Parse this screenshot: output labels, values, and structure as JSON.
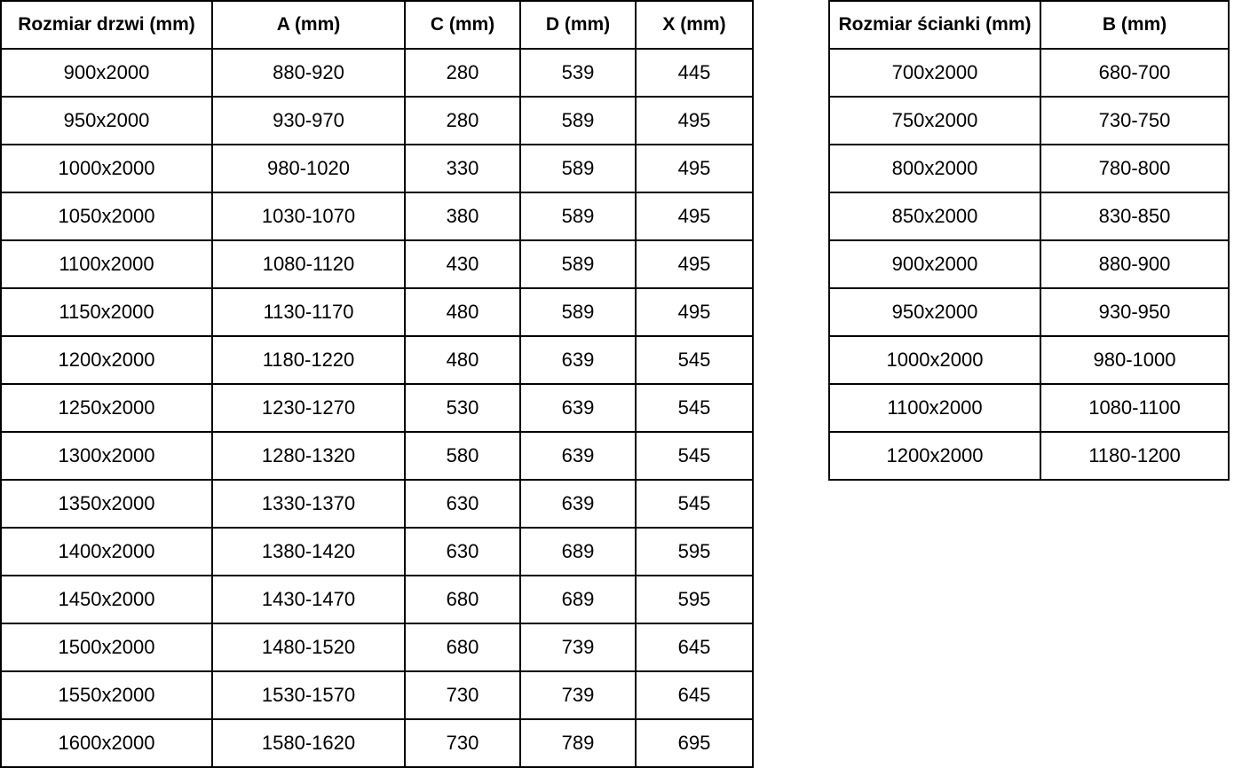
{
  "colors": {
    "border": "#000000",
    "text": "#000000",
    "background": "#ffffff"
  },
  "chart_data": [
    {
      "type": "table",
      "name": "door-sizes",
      "columns": [
        "Rozmiar drzwi (mm)",
        "A (mm)",
        "C (mm)",
        "D (mm)",
        "X (mm)"
      ],
      "rows": [
        [
          "900x2000",
          "880-920",
          "280",
          "539",
          "445"
        ],
        [
          "950x2000",
          "930-970",
          "280",
          "589",
          "495"
        ],
        [
          "1000x2000",
          "980-1020",
          "330",
          "589",
          "495"
        ],
        [
          "1050x2000",
          "1030-1070",
          "380",
          "589",
          "495"
        ],
        [
          "1100x2000",
          "1080-1120",
          "430",
          "589",
          "495"
        ],
        [
          "1150x2000",
          "1130-1170",
          "480",
          "589",
          "495"
        ],
        [
          "1200x2000",
          "1180-1220",
          "480",
          "639",
          "545"
        ],
        [
          "1250x2000",
          "1230-1270",
          "530",
          "639",
          "545"
        ],
        [
          "1300x2000",
          "1280-1320",
          "580",
          "639",
          "545"
        ],
        [
          "1350x2000",
          "1330-1370",
          "630",
          "639",
          "545"
        ],
        [
          "1400x2000",
          "1380-1420",
          "630",
          "689",
          "595"
        ],
        [
          "1450x2000",
          "1430-1470",
          "680",
          "689",
          "595"
        ],
        [
          "1500x2000",
          "1480-1520",
          "680",
          "739",
          "645"
        ],
        [
          "1550x2000",
          "1530-1570",
          "730",
          "739",
          "645"
        ],
        [
          "1600x2000",
          "1580-1620",
          "730",
          "789",
          "695"
        ]
      ]
    },
    {
      "type": "table",
      "name": "wall-sizes",
      "columns": [
        "Rozmiar ścianki (mm)",
        "B (mm)"
      ],
      "rows": [
        [
          "700x2000",
          "680-700"
        ],
        [
          "750x2000",
          "730-750"
        ],
        [
          "800x2000",
          "780-800"
        ],
        [
          "850x2000",
          "830-850"
        ],
        [
          "900x2000",
          "880-900"
        ],
        [
          "950x2000",
          "930-950"
        ],
        [
          "1000x2000",
          "980-1000"
        ],
        [
          "1100x2000",
          "1080-1100"
        ],
        [
          "1200x2000",
          "1180-1200"
        ]
      ]
    }
  ]
}
